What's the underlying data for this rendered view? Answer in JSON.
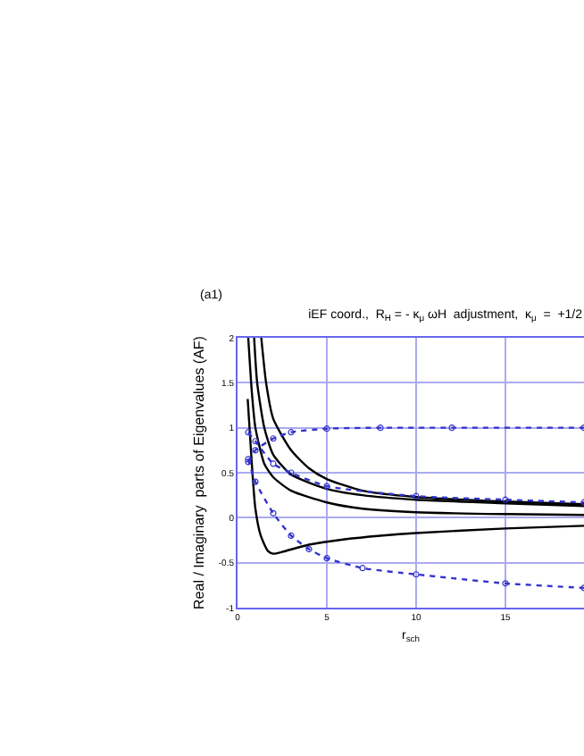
{
  "chart_data": {
    "type": "line",
    "title": "iEF coord.,  R$_{H}$ = - κ$_{μ}$ ωH  adjustment,  κ$_{μ}$  =  +1/2",
    "xlabel": "r$_{sch}$",
    "ylabel": "Real / Imaginary  parts of Eigenvalues (AF)",
    "annotations": [
      "(a1)"
    ],
    "xlim": [
      0,
      19.4
    ],
    "xticks": [
      0,
      5,
      10,
      15
    ],
    "ylim": [
      -1,
      2
    ],
    "yticks": [
      -1,
      -0.5,
      0,
      0.5,
      1,
      1.5,
      2
    ],
    "grid": true,
    "series": [
      {
        "color": "#000000",
        "marker": "none",
        "line_style": "solid",
        "x": [
          1.33,
          1.6,
          2,
          3,
          4,
          5,
          7,
          10,
          15,
          19.4
        ],
        "values": [
          2,
          1.5,
          1.1,
          0.75,
          0.55,
          0.43,
          0.3,
          0.23,
          0.18,
          0.15
        ]
      },
      {
        "color": "#000000",
        "marker": "none",
        "line_style": "solid",
        "x": [
          0.93,
          1.1,
          1.5,
          2,
          3,
          5,
          7,
          10,
          15,
          19.4
        ],
        "values": [
          2,
          1.5,
          1.0,
          0.7,
          0.48,
          0.32,
          0.25,
          0.2,
          0.16,
          0.13
        ]
      },
      {
        "color": "#000000",
        "marker": "none",
        "line_style": "solid",
        "x": [
          0.6,
          0.8,
          1,
          1.5,
          2,
          3,
          5,
          7,
          10,
          15,
          19.4
        ],
        "values": [
          2,
          1.4,
          1.0,
          0.6,
          0.45,
          0.3,
          0.17,
          0.1,
          0.06,
          0.04,
          0.03
        ]
      },
      {
        "color": "#000000",
        "marker": "none",
        "line_style": "solid",
        "x": [
          0.57,
          0.8,
          1,
          1.3,
          1.7,
          2,
          2.5,
          4,
          6,
          8,
          10,
          15,
          19.4
        ],
        "values": [
          1.32,
          0.6,
          0.1,
          -0.2,
          -0.37,
          -0.4,
          -0.38,
          -0.3,
          -0.24,
          -0.2,
          -0.17,
          -0.12,
          -0.09
        ]
      },
      {
        "color": "#3333cc",
        "marker": "circle",
        "line_style": "dotted",
        "x": [
          0.6,
          1,
          2,
          3,
          5,
          8,
          12,
          19.4
        ],
        "values": [
          0.62,
          0.75,
          0.88,
          0.95,
          0.99,
          1.0,
          1.0,
          1.0
        ]
      },
      {
        "color": "#3333cc",
        "marker": "circle",
        "line_style": "dotted",
        "x": [
          0.6,
          1,
          2,
          3,
          5,
          10,
          15,
          19.4
        ],
        "values": [
          0.95,
          0.85,
          0.6,
          0.5,
          0.35,
          0.24,
          0.2,
          0.17
        ]
      },
      {
        "color": "#3333cc",
        "marker": "circle",
        "line_style": "dotted",
        "x": [
          0.6,
          1,
          2,
          3,
          4,
          5,
          7,
          10,
          15,
          19.4
        ],
        "values": [
          0.65,
          0.4,
          0.05,
          -0.2,
          -0.35,
          -0.45,
          -0.56,
          -0.63,
          -0.73,
          -0.78
        ]
      }
    ]
  }
}
